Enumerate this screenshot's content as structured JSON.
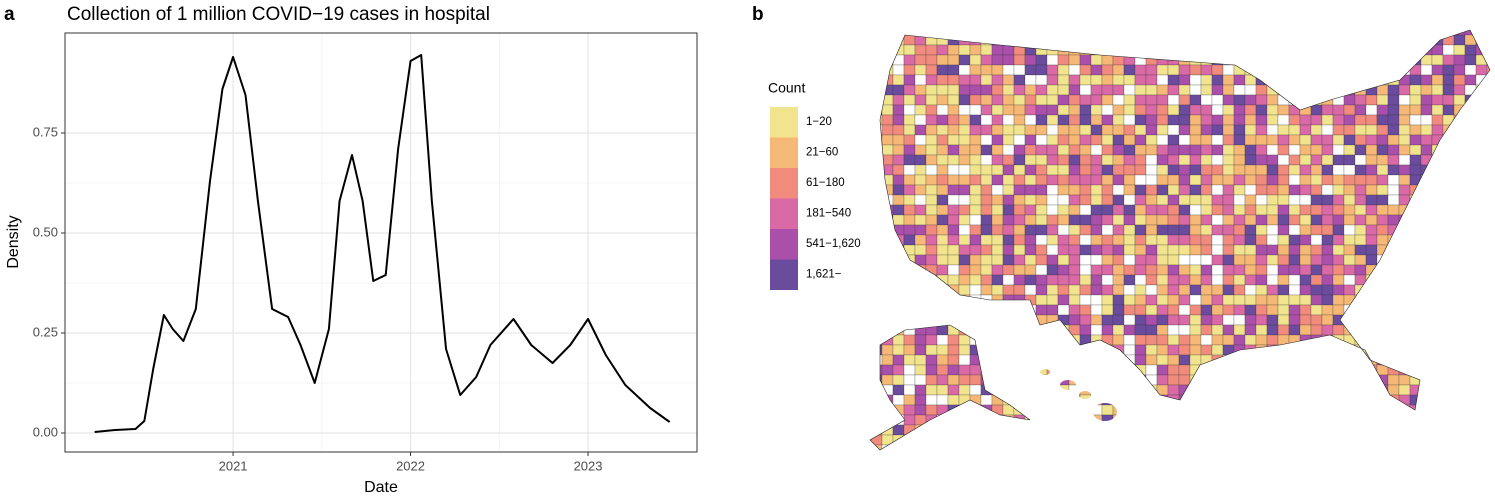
{
  "chart_data": [
    {
      "type": "line",
      "label": "a",
      "title": "Collection of 1 million COVID−19 cases in hospital",
      "x_label": "Date",
      "y_label": "Density",
      "x": [
        2020.22,
        2020.335,
        2020.45,
        2020.5,
        2020.55,
        2020.61,
        2020.66,
        2020.72,
        2020.79,
        2020.87,
        2020.94,
        2021.0,
        2021.07,
        2021.14,
        2021.22,
        2021.31,
        2021.38,
        2021.46,
        2021.54,
        2021.6,
        2021.67,
        2021.73,
        2021.79,
        2021.86,
        2021.93,
        2022.0,
        2022.06,
        2022.12,
        2022.2,
        2022.28,
        2022.37,
        2022.45,
        2022.58,
        2022.68,
        2022.8,
        2022.9,
        2023.0,
        2023.1,
        2023.21,
        2023.35,
        2023.46
      ],
      "series": [
        {
          "color": "#000000",
          "values": [
            0.0025,
            0.0075,
            0.01,
            0.03,
            0.16,
            0.295,
            0.26,
            0.23,
            0.31,
            0.63,
            0.86,
            0.94,
            0.845,
            0.58,
            0.31,
            0.29,
            0.22,
            0.125,
            0.26,
            0.58,
            0.695,
            0.58,
            0.38,
            0.395,
            0.71,
            0.93,
            0.945,
            0.58,
            0.21,
            0.095,
            0.14,
            0.22,
            0.285,
            0.22,
            0.175,
            0.22,
            0.285,
            0.195,
            0.12,
            0.0625,
            0.0275
          ]
        }
      ],
      "xlim": [
        2020.053,
        2023.614
      ],
      "xticks": [
        2021,
        2022,
        2023
      ],
      "ylim": [
        -0.0475,
        1.0
      ],
      "yticks": [
        {
          "value": 0,
          "label": "0.00"
        },
        0.25,
        {
          "value": 0.5,
          "label": "0.50"
        },
        0.75
      ],
      "grid": true
    },
    {
      "type": "map",
      "label": "b",
      "legend_title": "Count",
      "legend": [
        {
          "label": "1−20",
          "color": "#f2e48e"
        },
        {
          "label": "21−60",
          "color": "#f6b877"
        },
        {
          "label": "61−180",
          "color": "#f08b7d"
        },
        {
          "label": "181−540",
          "color": "#d96aa6"
        },
        {
          "label": "541−1,620",
          "color": "#aa50aa"
        },
        {
          "label": "1,621−",
          "color": "#6a4b9e"
        }
      ]
    }
  ]
}
